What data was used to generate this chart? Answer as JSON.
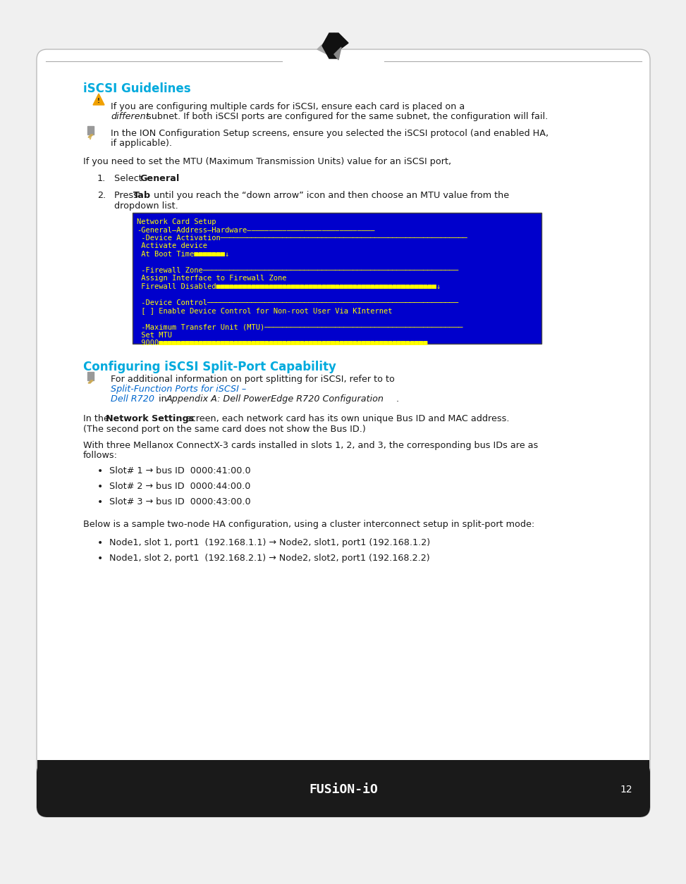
{
  "bg_color": "#f0f0f0",
  "card_bg": "#ffffff",
  "card_border": "#cccccc",
  "footer_bg": "#1a1a1a",
  "footer_text_color": "#ffffff",
  "page_number": "12",
  "footer_brand": "FUSiON-iO",
  "heading1": "iSCSI Guidelines",
  "heading2": "Configuring iSCSI Split-Port Capability",
  "heading_color": "#00aadd",
  "body_color": "#1a1a1a",
  "link_color": "#0066cc",
  "screen_bg": "#0000cc",
  "screen_text_color": "#ffff00",
  "mtu_intro": "If you need to set the MTU (Maximum Transmission Units) value for an iSCSI port,",
  "mellanox_line1": "With three Mellanox ConnectX-3 cards installed in slots 1, 2, and 3, the corresponding bus IDs are as",
  "mellanox_line2": "follows:",
  "bullet_slots": [
    "Slot# 1 → bus ID  0000:41:00.0",
    "Slot# 2 → bus ID  0000:44:00.0",
    "Slot# 3 → bus ID  0000:43:00.0"
  ],
  "ha_intro": "Below is a sample two-node HA configuration, using a cluster interconnect setup in split-port mode:",
  "bullet_ha": [
    "Node1, slot 1, port1  (192.168.1.1) → Node2, slot1, port1 (192.168.1.2)",
    "Node1, slot 2, port1  (192.168.2.1) → Node2, slot2, port1 (192.168.2.2)"
  ]
}
